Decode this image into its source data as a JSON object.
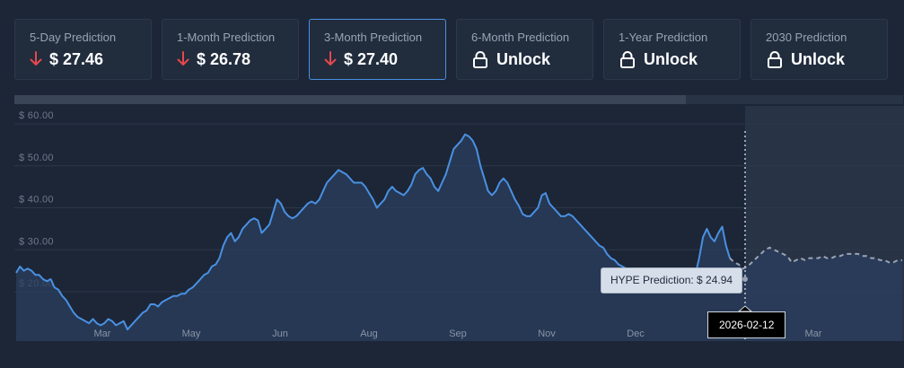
{
  "cards": [
    {
      "label": "5-Day Prediction",
      "value": "$ 27.46",
      "icon": "arrow-down-icon",
      "active": false
    },
    {
      "label": "1-Month Prediction",
      "value": "$ 26.78",
      "icon": "arrow-down-icon",
      "active": false
    },
    {
      "label": "3-Month Prediction",
      "value": "$ 27.40",
      "icon": "arrow-down-icon",
      "active": true
    },
    {
      "label": "6-Month Prediction",
      "value": "Unlock",
      "icon": "lock-icon",
      "active": false
    },
    {
      "label": "1-Year Prediction",
      "value": "Unlock",
      "icon": "lock-icon",
      "active": false
    },
    {
      "label": "2030 Prediction",
      "value": "Unlock",
      "icon": "lock-icon",
      "active": false
    }
  ],
  "colors": {
    "background": "#1c2636",
    "card": "#212c3d",
    "active_border": "#4a90e2",
    "arrow_down": "#e5484d",
    "actual_line": "#4a90e2",
    "prediction_line": "#9aa4b2"
  },
  "tooltip": {
    "text": "HYPE Prediction: $ 24.94"
  },
  "crosshair": {
    "date": "2026-02-12"
  },
  "chart_data": {
    "type": "line",
    "xlabel": "",
    "ylabel": "",
    "ylim": [
      10,
      62
    ],
    "x_ticks": [
      "Mar",
      "May",
      "Jun",
      "Aug",
      "Sep",
      "Nov",
      "Dec",
      "Mar"
    ],
    "y_ticks": [
      "$ 20.00",
      "$ 30.00",
      "$ 40.00",
      "$ 50.00",
      "$ 60.00"
    ],
    "y_tick_values": [
      20,
      30,
      40,
      50,
      60
    ],
    "grid": true,
    "series": [
      {
        "style": "solid",
        "values": [
          24.5,
          26,
          25,
          25.5,
          25,
          24,
          24,
          23,
          22.5,
          23,
          21,
          20.5,
          19,
          18,
          16.5,
          15,
          14,
          13.5,
          13,
          12.5,
          13.5,
          12.5,
          12,
          12.5,
          13.5,
          13,
          12,
          12.5,
          13,
          11,
          12,
          13,
          14,
          15,
          15.5,
          17,
          17,
          16.5,
          17.5,
          18,
          18.5,
          19,
          19,
          19.5,
          19.5,
          20.5,
          21,
          22,
          23,
          24,
          24.5,
          26,
          26.5,
          28,
          31,
          33,
          34,
          32,
          33,
          35,
          36,
          37,
          37.5,
          37,
          34,
          35,
          36,
          39,
          42,
          41,
          39,
          38,
          37.5,
          38,
          39,
          40,
          41,
          41.5,
          41,
          42,
          44,
          46,
          47,
          48,
          49,
          48.5,
          48,
          47,
          46,
          46,
          46,
          45,
          43.5,
          42,
          40,
          41,
          42,
          44,
          45,
          44,
          43.5,
          43,
          44,
          45.5,
          48,
          49,
          49.5,
          48,
          47,
          45,
          44,
          46,
          48,
          51,
          54,
          55,
          56,
          57.5,
          57,
          56,
          54,
          50,
          47,
          44,
          43,
          44,
          46,
          47,
          46,
          44,
          42,
          40.5,
          38.5,
          38,
          38,
          39,
          40,
          43,
          43.5,
          41,
          40,
          39,
          38,
          38,
          38.5,
          38,
          37,
          36,
          35,
          34,
          33,
          32,
          31,
          30.5,
          29,
          28,
          27.5,
          26.5,
          26,
          25.5,
          25,
          25,
          24,
          24.5,
          25,
          24.5,
          24,
          23,
          23,
          23.5,
          23,
          24,
          24,
          23,
          22,
          21.5,
          22,
          24,
          28,
          33,
          35,
          33,
          32,
          34,
          35.5,
          31,
          28
        ]
      },
      {
        "style": "dashed",
        "values": [
          28,
          27,
          26.5,
          25.5,
          26,
          27,
          28,
          29,
          30,
          30.5,
          30,
          29.5,
          29,
          28.5,
          27,
          27.5,
          28,
          27.5,
          28,
          28,
          28,
          28.5,
          28,
          28,
          28.5,
          28.5,
          29,
          29,
          29,
          29,
          28.5,
          28.5,
          28,
          28,
          27.5,
          27.5,
          27,
          27,
          27.5,
          27.5
        ]
      }
    ]
  }
}
